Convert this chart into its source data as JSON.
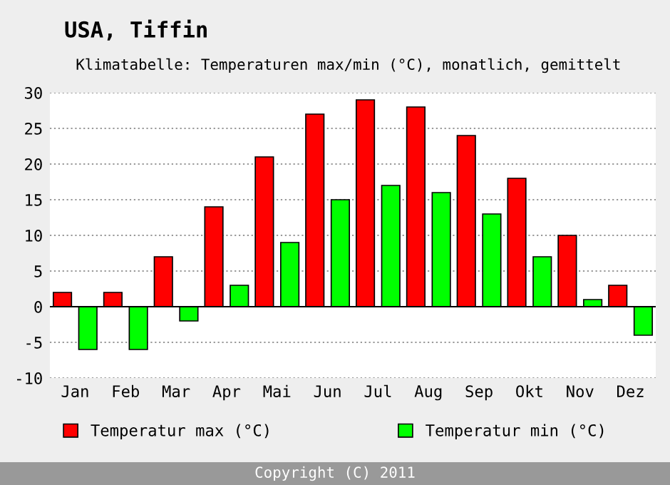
{
  "chart_data": {
    "type": "bar",
    "title": "USA, Tiffin",
    "subtitle": "Klimatabelle: Temperaturen max/min (°C), monatlich, gemittelt",
    "categories": [
      "Jan",
      "Feb",
      "Mar",
      "Apr",
      "Mai",
      "Jun",
      "Jul",
      "Aug",
      "Sep",
      "Okt",
      "Nov",
      "Dez"
    ],
    "series": [
      {
        "name": "Temperatur max (°C)",
        "color": "#ff0000",
        "values": [
          2,
          2,
          7,
          14,
          21,
          27,
          29,
          28,
          24,
          18,
          10,
          3
        ]
      },
      {
        "name": "Temperatur min (°C)",
        "color": "#00ff00",
        "values": [
          -6,
          -6,
          -2,
          3,
          9,
          15,
          17,
          16,
          13,
          7,
          1,
          -4
        ]
      }
    ],
    "ylim": [
      -10,
      30
    ],
    "yticks": [
      -10,
      -5,
      0,
      5,
      10,
      15,
      20,
      25,
      30
    ],
    "grid": "y",
    "legend": "bottom",
    "annotations": [
      "Copyright (C) 2011"
    ]
  }
}
